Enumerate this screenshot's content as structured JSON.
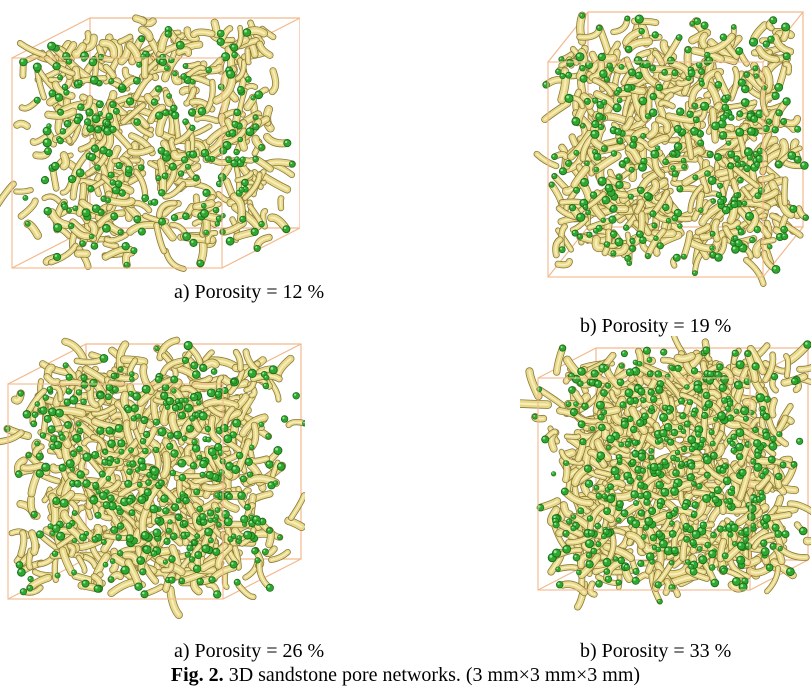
{
  "figure": {
    "panels": [
      {
        "label": "a) Porosity = 12 %",
        "porosity": 12,
        "strand_color": "#e8d98a",
        "node_color": "#2fa82f",
        "box_color": "#f2b98c"
      },
      {
        "label": "b) Porosity = 19 %",
        "porosity": 19,
        "strand_color": "#e8d98a",
        "node_color": "#2fa82f",
        "box_color": "#f2b98c"
      },
      {
        "label": "a) Porosity = 26 %",
        "porosity": 26,
        "strand_color": "#e8d98a",
        "node_color": "#2fa82f",
        "box_color": "#f2b98c"
      },
      {
        "label": "b) Porosity = 33 %",
        "porosity": 33,
        "strand_color": "#e8d98a",
        "node_color": "#2fa82f",
        "box_color": "#f2b98c"
      }
    ],
    "caption": {
      "prefix": "Fig. 2.",
      "text": "3D sandstone pore networks. (3 mm×3 mm×3 mm)"
    }
  }
}
